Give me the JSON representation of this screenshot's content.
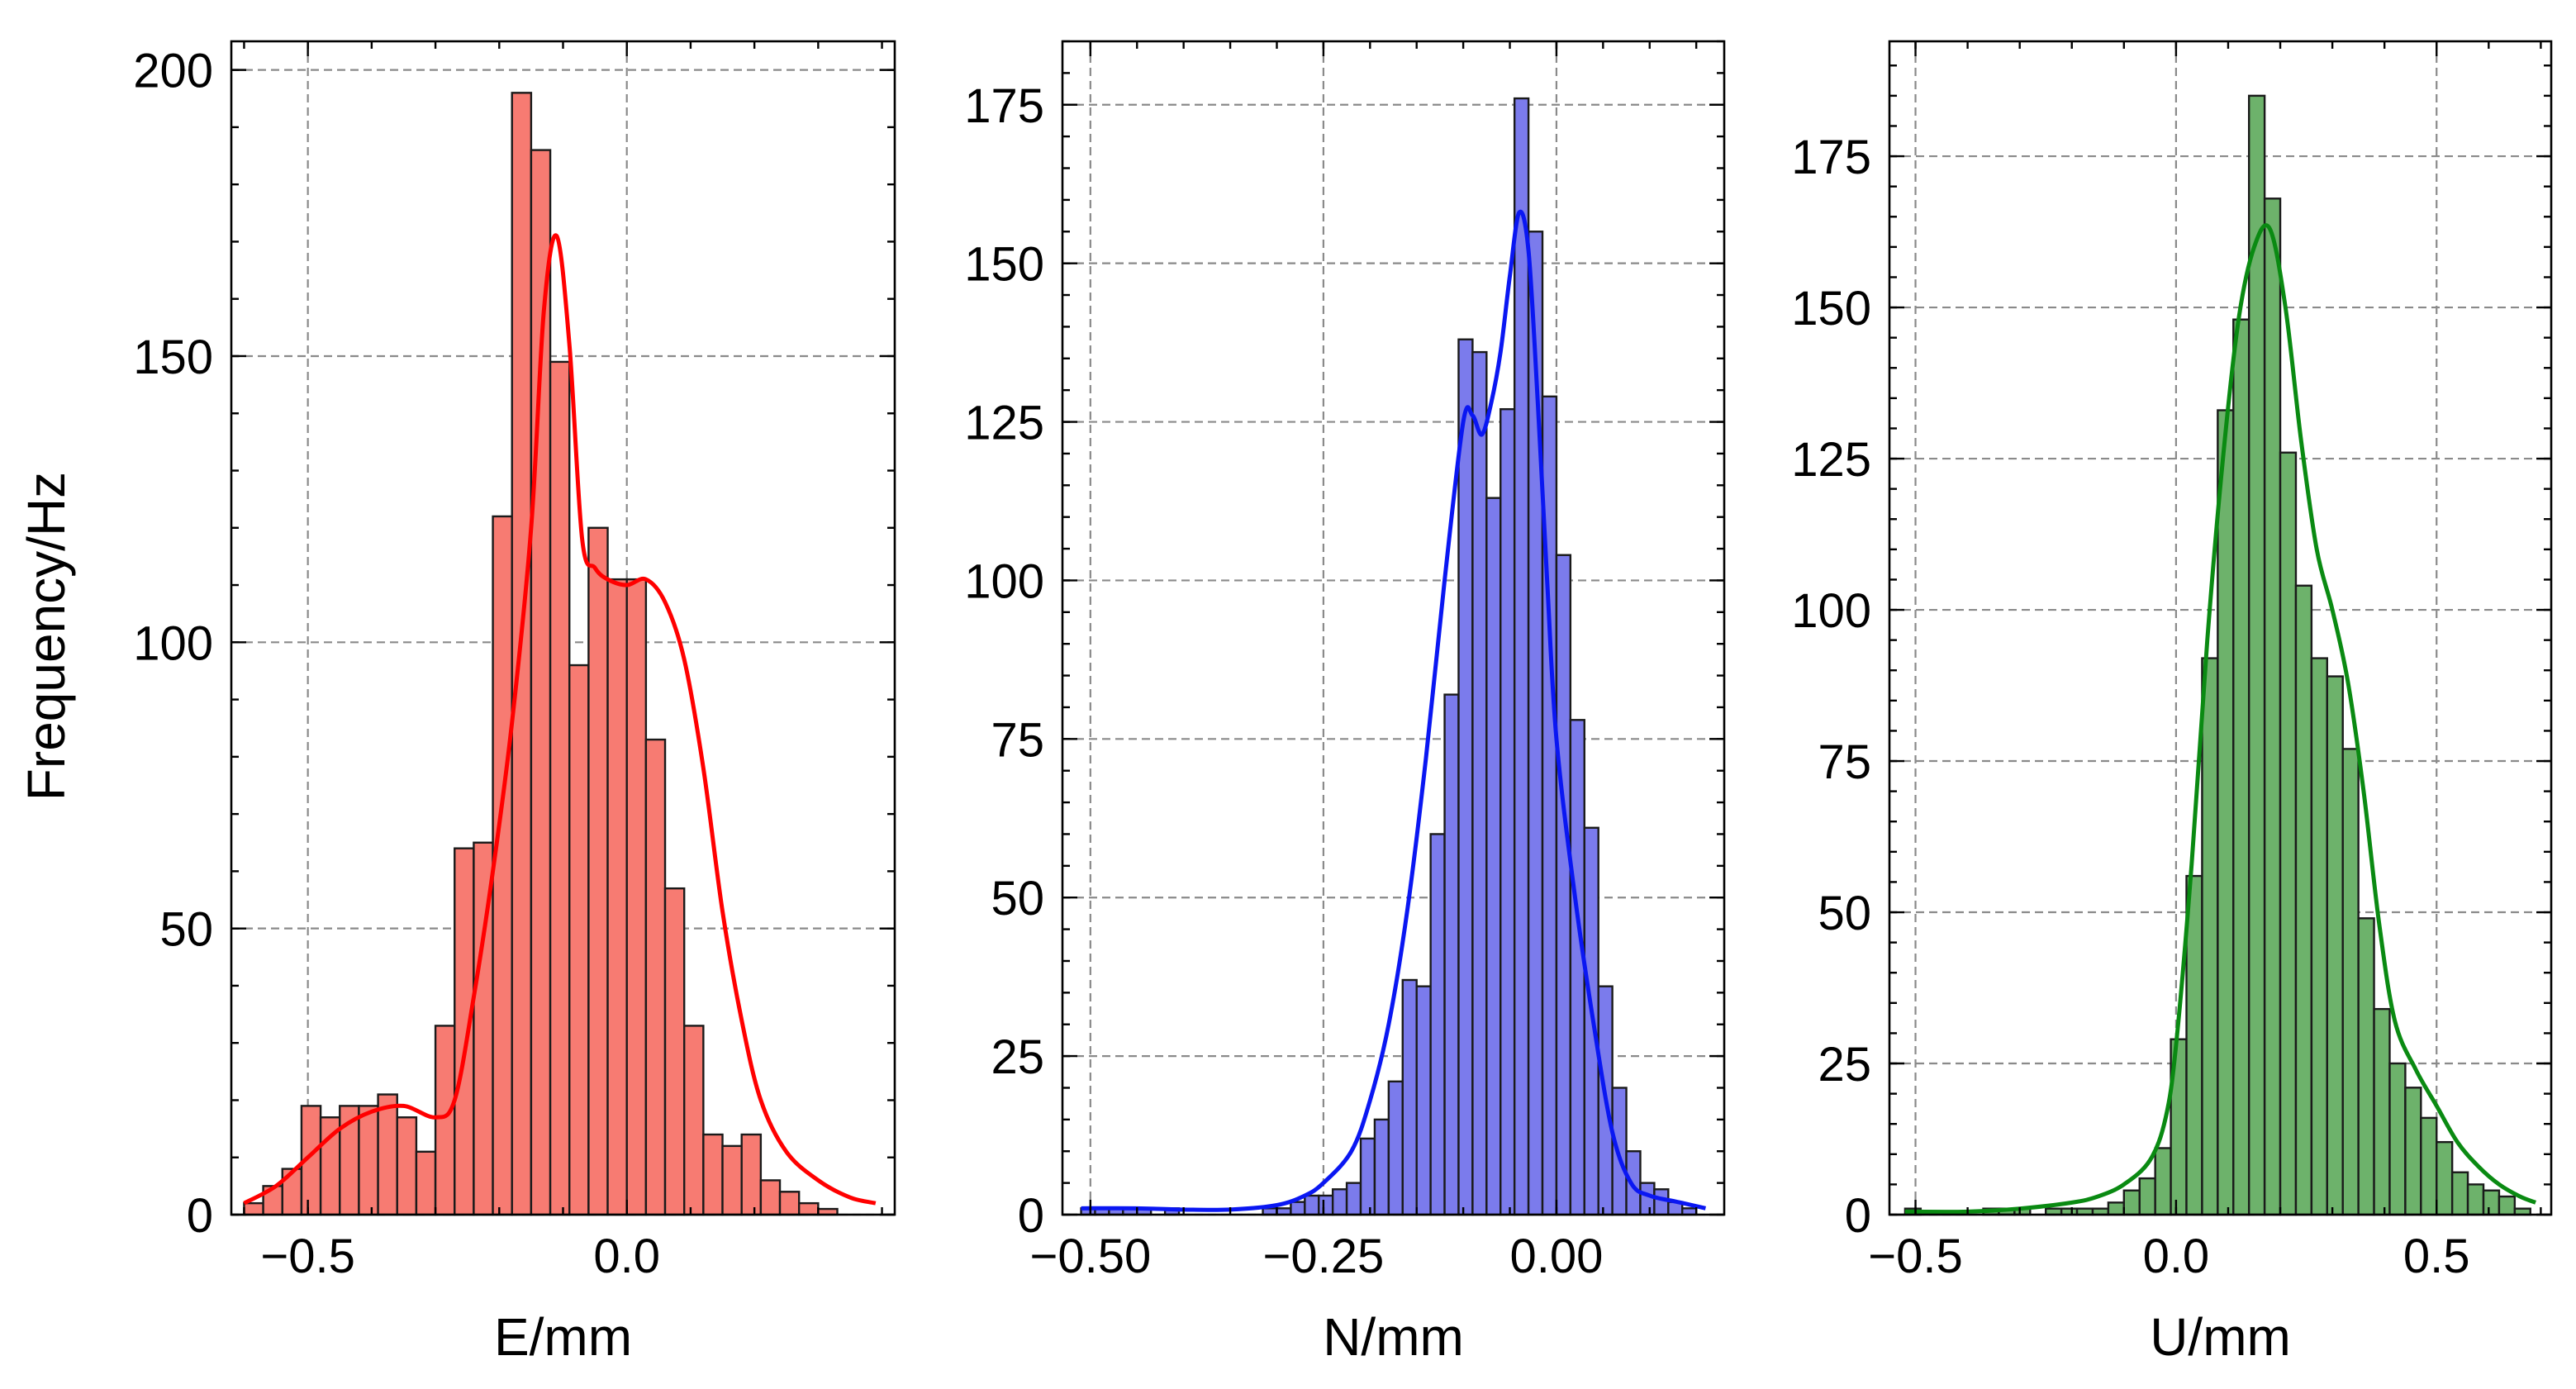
{
  "figure": {
    "ylabel": "Frequency/Hz"
  },
  "chart_data": [
    {
      "type": "bar",
      "xlabel": "E/mm",
      "ylabel": "Frequency/Hz",
      "grid": true,
      "xlim": [
        -0.62,
        0.42
      ],
      "ylim": [
        0,
        205
      ],
      "xticks": [
        -0.5,
        0.0
      ],
      "xtick_labels": [
        "−0.5",
        "0.0"
      ],
      "yticks": [
        0,
        50,
        100,
        150,
        200
      ],
      "ytick_labels": [
        "0",
        "50",
        "100",
        "150",
        "200"
      ],
      "bin_edges": [
        -0.6,
        -0.57,
        -0.54,
        -0.51,
        -0.48,
        -0.45,
        -0.42,
        -0.39,
        -0.36,
        -0.33,
        -0.3,
        -0.27,
        -0.24,
        -0.21,
        -0.18,
        -0.15,
        -0.12,
        -0.09,
        -0.06,
        -0.03,
        0.0,
        0.03,
        0.06,
        0.09,
        0.12,
        0.15,
        0.18,
        0.21,
        0.24,
        0.27,
        0.3,
        0.33,
        0.36,
        0.39
      ],
      "counts": [
        2,
        5,
        8,
        19,
        17,
        19,
        19,
        21,
        17,
        11,
        33,
        64,
        65,
        122,
        196,
        186,
        149,
        96,
        120,
        111,
        111,
        83,
        57,
        33,
        14,
        12,
        14,
        6,
        4,
        2,
        1,
        0,
        0
      ],
      "kde": {
        "x": [
          -0.6,
          -0.55,
          -0.5,
          -0.45,
          -0.4,
          -0.35,
          -0.3,
          -0.27,
          -0.24,
          -0.21,
          -0.18,
          -0.15,
          -0.13,
          -0.11,
          -0.09,
          -0.07,
          -0.05,
          -0.03,
          0.0,
          0.03,
          0.06,
          0.09,
          0.12,
          0.15,
          0.18,
          0.21,
          0.25,
          0.3,
          0.35,
          0.39
        ],
        "y": [
          2,
          5,
          10,
          15,
          18,
          19,
          17,
          20,
          38,
          60,
          86,
          120,
          158,
          171,
          152,
          118,
          113,
          111,
          110,
          111,
          107,
          97,
          78,
          53,
          34,
          20,
          11,
          6,
          3,
          2
        ]
      },
      "bar_color": "#f77b72",
      "line_color": "#ff0000"
    },
    {
      "type": "bar",
      "xlabel": "N/mm",
      "grid": true,
      "xlim": [
        -0.53,
        0.18
      ],
      "ylim": [
        0,
        185
      ],
      "xticks": [
        -0.5,
        -0.25,
        0.0
      ],
      "xtick_labels": [
        "−0.50",
        "−0.25",
        "0.00"
      ],
      "yticks": [
        0,
        25,
        50,
        75,
        100,
        125,
        150,
        175
      ],
      "ytick_labels": [
        "0",
        "25",
        "50",
        "75",
        "100",
        "125",
        "150",
        "175"
      ],
      "bin_edges": [
        -0.51,
        -0.495,
        -0.48,
        -0.465,
        -0.45,
        -0.435,
        -0.42,
        -0.405,
        -0.39,
        -0.375,
        -0.36,
        -0.345,
        -0.33,
        -0.315,
        -0.3,
        -0.285,
        -0.27,
        -0.255,
        -0.24,
        -0.225,
        -0.21,
        -0.195,
        -0.18,
        -0.165,
        -0.15,
        -0.135,
        -0.12,
        -0.105,
        -0.09,
        -0.075,
        -0.06,
        -0.045,
        -0.03,
        -0.015,
        0.0,
        0.015,
        0.03,
        0.045,
        0.06,
        0.075,
        0.09,
        0.105,
        0.12,
        0.135,
        0.15
      ],
      "counts": [
        1,
        1,
        1,
        1,
        1,
        0,
        1,
        0,
        0,
        0,
        0,
        0,
        0,
        1,
        1,
        2,
        3,
        3,
        4,
        5,
        12,
        15,
        21,
        37,
        36,
        60,
        82,
        138,
        136,
        113,
        127,
        176,
        155,
        129,
        104,
        78,
        61,
        36,
        20,
        10,
        5,
        4,
        2,
        1
      ],
      "kde": {
        "x": [
          -0.51,
          -0.45,
          -0.4,
          -0.35,
          -0.3,
          -0.27,
          -0.25,
          -0.22,
          -0.2,
          -0.18,
          -0.16,
          -0.14,
          -0.12,
          -0.1,
          -0.09,
          -0.08,
          -0.07,
          -0.06,
          -0.05,
          -0.04,
          -0.03,
          -0.02,
          -0.01,
          0.0,
          0.02,
          0.04,
          0.06,
          0.08,
          0.1,
          0.13,
          0.16
        ],
        "y": [
          1,
          1,
          0.8,
          0.8,
          1.5,
          3,
          5,
          10,
          18,
          30,
          48,
          72,
          100,
          125,
          126,
          123,
          128,
          136,
          148,
          158,
          152,
          128,
          100,
          75,
          50,
          30,
          13,
          5,
          3,
          2,
          1
        ]
      },
      "bar_color": "#7b7bec",
      "line_color": "#0a17f2"
    },
    {
      "type": "bar",
      "xlabel": "U/mm",
      "grid": true,
      "xlim": [
        -0.55,
        0.72
      ],
      "ylim": [
        0,
        194
      ],
      "xticks": [
        -0.5,
        0.0,
        0.5
      ],
      "xtick_labels": [
        "−0.5",
        "0.0",
        "0.5"
      ],
      "yticks": [
        0,
        25,
        50,
        75,
        100,
        125,
        150,
        175
      ],
      "ytick_labels": [
        "0",
        "25",
        "50",
        "75",
        "100",
        "125",
        "150",
        "175"
      ],
      "bin_edges": [
        -0.52,
        -0.49,
        -0.46,
        -0.43,
        -0.4,
        -0.37,
        -0.34,
        -0.31,
        -0.28,
        -0.25,
        -0.22,
        -0.19,
        -0.16,
        -0.13,
        -0.1,
        -0.07,
        -0.04,
        -0.01,
        0.02,
        0.05,
        0.08,
        0.11,
        0.14,
        0.17,
        0.2,
        0.23,
        0.26,
        0.29,
        0.32,
        0.35,
        0.38,
        0.41,
        0.44,
        0.47,
        0.5,
        0.53,
        0.56,
        0.59,
        0.62,
        0.65,
        0.68
      ],
      "counts": [
        1,
        0,
        0,
        0,
        0,
        1,
        1,
        1,
        0,
        1,
        1,
        1,
        1,
        2,
        4,
        6,
        11,
        29,
        56,
        92,
        133,
        148,
        185,
        168,
        126,
        104,
        92,
        89,
        77,
        49,
        34,
        25,
        21,
        16,
        12,
        7,
        5,
        4,
        3,
        1
      ],
      "kde": {
        "x": [
          -0.52,
          -0.4,
          -0.3,
          -0.2,
          -0.15,
          -0.1,
          -0.05,
          -0.02,
          0.0,
          0.03,
          0.06,
          0.09,
          0.12,
          0.15,
          0.18,
          0.21,
          0.24,
          0.27,
          0.3,
          0.33,
          0.36,
          0.39,
          0.42,
          0.46,
          0.5,
          0.54,
          0.58,
          0.62,
          0.66,
          0.69
        ],
        "y": [
          0.5,
          0.5,
          1,
          2,
          3,
          5,
          9,
          16,
          28,
          58,
          95,
          125,
          148,
          160,
          163,
          150,
          128,
          110,
          100,
          88,
          70,
          48,
          32,
          24,
          18,
          12,
          8,
          5,
          3,
          2
        ]
      },
      "bar_color": "#6db26b",
      "line_color": "#0a8a12"
    }
  ]
}
